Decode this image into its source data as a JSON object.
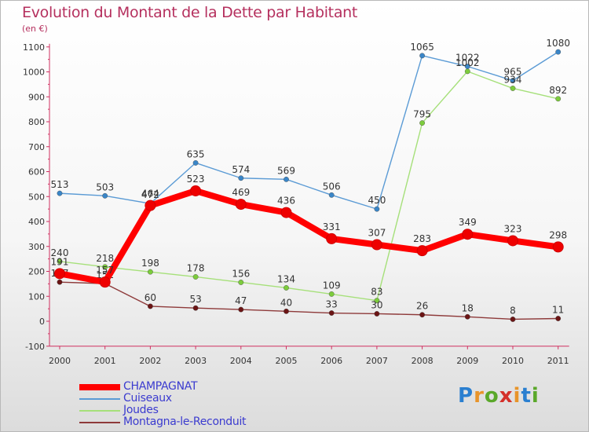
{
  "header": {
    "title": "Evolution du Montant de la Dette par Habitant",
    "unit": "(en €)"
  },
  "brand": {
    "text": "Proxiti",
    "letter_colors": [
      "#2a7fd0",
      "#e8942a",
      "#5aa82a",
      "#d4302a",
      "#e8942a",
      "#2a7fd0",
      "#5aa82a"
    ]
  },
  "chart_data": {
    "type": "line",
    "title": "Evolution du Montant de la Dette par Habitant",
    "subtitle": "(en €)",
    "xlabel": "",
    "ylabel": "",
    "ylim": [
      -100,
      1100
    ],
    "yticks": [
      -100,
      0,
      100,
      200,
      300,
      400,
      500,
      600,
      700,
      800,
      900,
      1000,
      1100
    ],
    "grid": false,
    "legend_position": "bottom-left",
    "x": [
      "2000",
      "2001",
      "2002",
      "2003",
      "2004",
      "2005",
      "2006",
      "2007",
      "2008",
      "2009",
      "2010",
      "2011"
    ],
    "series": [
      {
        "name": "Cuiseaux",
        "color": "#5b9bd5",
        "marker": "#3a86c8",
        "values": [
          513,
          503,
          472,
          635,
          574,
          569,
          506,
          450,
          1065,
          1022,
          965,
          1080
        ]
      },
      {
        "name": "Joudes",
        "color": "#a6e07a",
        "marker": "#7ccc3c",
        "values": [
          240,
          218,
          198,
          178,
          156,
          134,
          109,
          83,
          795,
          1002,
          934,
          892
        ]
      },
      {
        "name": "Montagna-le-Reconduit",
        "color": "#8e3a3a",
        "marker": "#6b1414",
        "values": [
          157,
          151,
          60,
          53,
          47,
          40,
          33,
          30,
          26,
          18,
          8,
          11
        ]
      },
      {
        "name": "CHAMPAGNAT",
        "color": "#ff0000",
        "marker": "#ee0000",
        "values": [
          191,
          157,
          464,
          523,
          469,
          436,
          331,
          307,
          283,
          349,
          323,
          298
        ]
      }
    ],
    "legend_order": [
      "CHAMPAGNAT",
      "Cuiseaux",
      "Joudes",
      "Montagna-le-Reconduit"
    ],
    "legend_label_color": "#3b3bcf"
  }
}
